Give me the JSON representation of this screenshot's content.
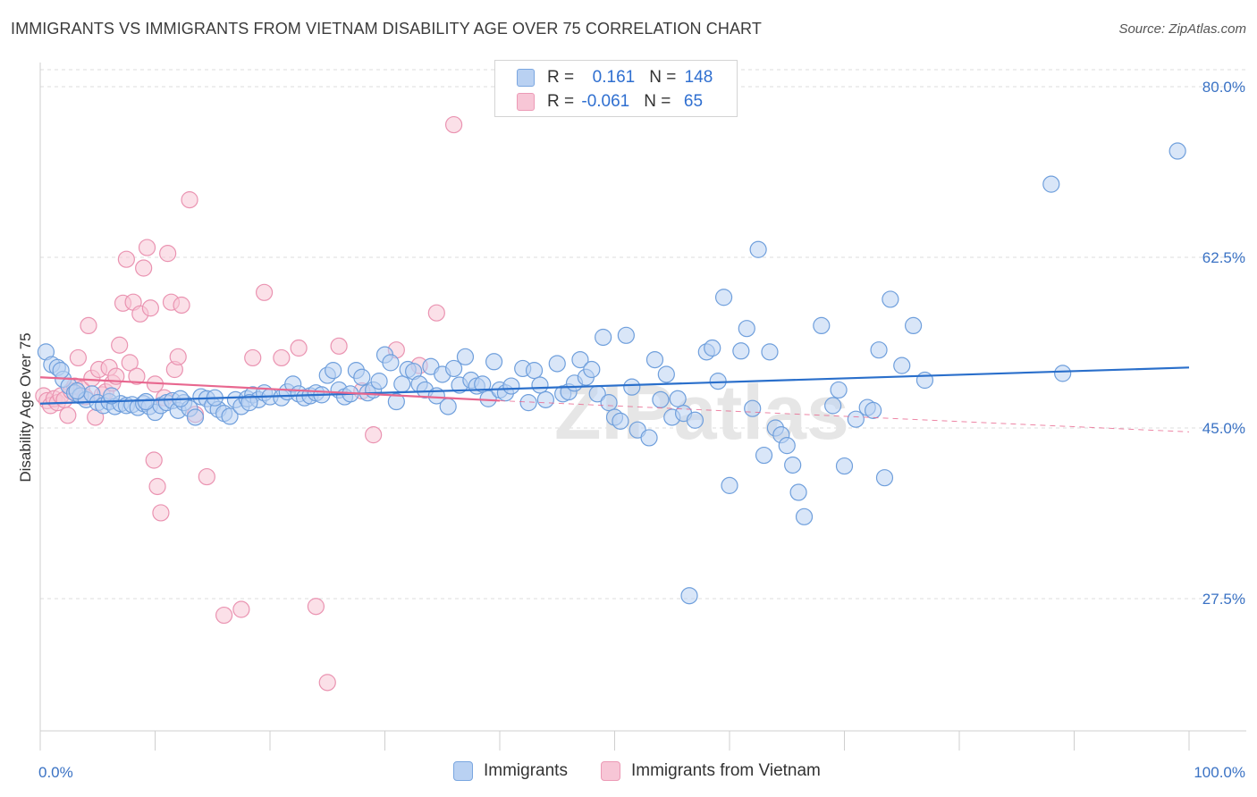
{
  "title": "IMMIGRANTS VS IMMIGRANTS FROM VIETNAM DISABILITY AGE OVER 75 CORRELATION CHART",
  "source": "Source: ZipAtlas.com",
  "watermark": "ZIPatlas",
  "legend": {
    "rows": [
      {
        "r_label": "R = ",
        "r_value": " 0.161",
        "n_label": "N = ",
        "n_value": "148"
      },
      {
        "r_label": "R = ",
        "r_value": "-0.061",
        "n_label": "N = ",
        "n_value": " 65"
      }
    ]
  },
  "bottom_legend": [
    "Immigrants",
    "Immigrants from Vietnam"
  ],
  "colors": {
    "blue_fill": "#b9d1f2",
    "blue_stroke": "#6f9fdc",
    "blue_line": "#2a6fcb",
    "pink_fill": "#f7c6d6",
    "pink_stroke": "#ea93b1",
    "pink_line": "#e8678f",
    "tick_text": "#3a72c4",
    "grid": "#dcdcdc"
  },
  "chart_data": {
    "type": "scatter",
    "ylabel": "Disability Age Over 75",
    "x_tick_labels": [
      "0.0%",
      "100.0%"
    ],
    "y_tick_labels": [
      "80.0%",
      "62.5%",
      "45.0%",
      "27.5%"
    ],
    "y_ticks": [
      80.0,
      62.5,
      45.0,
      27.5
    ],
    "xlim": [
      0,
      100
    ],
    "ylim": [
      10.5,
      83
    ],
    "grid": "horizontal dashed",
    "legend_position": "top-center",
    "series": [
      {
        "name": "Immigrants",
        "color": "#6f9fdc",
        "trend": {
          "x": [
            0,
            100
          ],
          "y": [
            47.5,
            51.2
          ]
        },
        "points": [
          [
            0.5,
            52.8
          ],
          [
            1,
            51.5
          ],
          [
            1.5,
            51.2
          ],
          [
            2,
            50
          ],
          [
            2.5,
            49.3
          ],
          [
            3,
            48.6
          ],
          [
            3.5,
            48.3
          ],
          [
            4,
            47.9
          ],
          [
            4.5,
            48.5
          ],
          [
            5,
            47.6
          ],
          [
            5.5,
            47.3
          ],
          [
            6,
            47.7
          ],
          [
            6.5,
            47.2
          ],
          [
            7,
            47.5
          ],
          [
            7.5,
            47.3
          ],
          [
            8,
            47.4
          ],
          [
            8.5,
            47.1
          ],
          [
            9,
            47.5
          ],
          [
            9.5,
            47.2
          ],
          [
            10,
            46.6
          ],
          [
            10.5,
            47.3
          ],
          [
            11,
            47.6
          ],
          [
            11.5,
            47.8
          ],
          [
            12,
            46.8
          ],
          [
            12.5,
            47.6
          ],
          [
            13,
            47.0
          ],
          [
            13.5,
            46.1
          ],
          [
            14,
            48.2
          ],
          [
            14.5,
            48.0
          ],
          [
            15,
            47.3
          ],
          [
            15.5,
            46.9
          ],
          [
            16,
            46.5
          ],
          [
            16.5,
            46.2
          ],
          [
            17,
            47.9
          ],
          [
            17.5,
            47.2
          ],
          [
            18,
            48.0
          ],
          [
            18.5,
            48.4
          ],
          [
            19,
            47.9
          ],
          [
            19.5,
            48.6
          ],
          [
            20,
            48.2
          ],
          [
            21,
            48.1
          ],
          [
            21.5,
            48.7
          ],
          [
            22,
            49.5
          ],
          [
            22.5,
            48.5
          ],
          [
            23,
            48.1
          ],
          [
            23.5,
            48.3
          ],
          [
            24,
            48.6
          ],
          [
            24.5,
            48.4
          ],
          [
            25,
            50.4
          ],
          [
            25.5,
            50.9
          ],
          [
            26,
            48.9
          ],
          [
            26.5,
            48.2
          ],
          [
            27,
            48.5
          ],
          [
            27.5,
            50.9
          ],
          [
            28,
            50.2
          ],
          [
            28.5,
            48.6
          ],
          [
            29,
            48.9
          ],
          [
            29.5,
            49.8
          ],
          [
            30,
            52.5
          ],
          [
            30.5,
            51.7
          ],
          [
            31,
            47.7
          ],
          [
            31.5,
            49.5
          ],
          [
            32,
            51.0
          ],
          [
            32.5,
            50.8
          ],
          [
            33,
            49.5
          ],
          [
            33.5,
            48.9
          ],
          [
            34,
            51.3
          ],
          [
            34.5,
            48.3
          ],
          [
            35,
            50.5
          ],
          [
            35.5,
            47.2
          ],
          [
            36,
            51.1
          ],
          [
            36.5,
            49.4
          ],
          [
            37,
            52.3
          ],
          [
            37.5,
            49.9
          ],
          [
            38,
            49.3
          ],
          [
            38.5,
            49.5
          ],
          [
            39,
            48.0
          ],
          [
            39.5,
            51.8
          ],
          [
            40,
            48.9
          ],
          [
            40.5,
            48.6
          ],
          [
            41,
            49.3
          ],
          [
            42,
            51.1
          ],
          [
            42.5,
            47.6
          ],
          [
            43,
            50.9
          ],
          [
            43.5,
            49.4
          ],
          [
            44,
            47.9
          ],
          [
            45,
            51.6
          ],
          [
            45.5,
            48.5
          ],
          [
            46,
            48.7
          ],
          [
            46.5,
            49.6
          ],
          [
            47,
            52.0
          ],
          [
            47.5,
            50.2
          ],
          [
            48,
            51.0
          ],
          [
            48.5,
            48.5
          ],
          [
            49,
            54.3
          ],
          [
            49.5,
            47.6
          ],
          [
            50,
            46.1
          ],
          [
            50.5,
            45.7
          ],
          [
            51,
            54.5
          ],
          [
            51.5,
            49.2
          ],
          [
            52,
            44.8
          ],
          [
            53,
            44.0
          ],
          [
            53.5,
            52.0
          ],
          [
            54,
            47.9
          ],
          [
            54.5,
            50.5
          ],
          [
            55,
            46.1
          ],
          [
            55.5,
            48.0
          ],
          [
            56,
            46.5
          ],
          [
            56.5,
            27.8
          ],
          [
            57,
            45.8
          ],
          [
            58,
            52.8
          ],
          [
            58.5,
            53.2
          ],
          [
            59,
            49.8
          ],
          [
            59.5,
            58.4
          ],
          [
            60,
            39.1
          ],
          [
            61,
            52.9
          ],
          [
            61.5,
            55.2
          ],
          [
            62,
            47.0
          ],
          [
            62.5,
            63.3
          ],
          [
            63,
            42.2
          ],
          [
            63.5,
            52.8
          ],
          [
            64,
            45.0
          ],
          [
            64.5,
            44.3
          ],
          [
            65,
            43.2
          ],
          [
            65.5,
            41.2
          ],
          [
            66,
            38.4
          ],
          [
            66.5,
            35.9
          ],
          [
            68,
            55.5
          ],
          [
            69,
            47.3
          ],
          [
            69.5,
            48.9
          ],
          [
            70,
            41.1
          ],
          [
            71,
            45.9
          ],
          [
            72,
            47.1
          ],
          [
            72.5,
            46.8
          ],
          [
            73,
            53.0
          ],
          [
            73.5,
            39.9
          ],
          [
            74,
            58.2
          ],
          [
            75,
            51.4
          ],
          [
            76,
            55.5
          ],
          [
            77,
            49.9
          ],
          [
            88,
            70.0
          ],
          [
            89,
            50.6
          ],
          [
            99,
            73.4
          ],
          [
            1.8,
            50.9
          ],
          [
            3.2,
            48.8
          ],
          [
            6.2,
            48.3
          ],
          [
            9.2,
            47.7
          ],
          [
            12.2,
            48.0
          ],
          [
            15.2,
            48.1
          ],
          [
            18.2,
            47.6
          ]
        ]
      },
      {
        "name": "Immigrants from Vietnam",
        "color": "#ea93b1",
        "trend": {
          "x": [
            0,
            40
          ],
          "y": [
            50.2,
            47.8
          ],
          "dashed_to": [
            100,
            44.6
          ]
        },
        "points": [
          [
            0.3,
            48.3
          ],
          [
            0.6,
            47.8
          ],
          [
            0.9,
            47.3
          ],
          [
            1.2,
            48.0
          ],
          [
            1.5,
            47.6
          ],
          [
            1.8,
            48.3
          ],
          [
            2.1,
            47.9
          ],
          [
            2.4,
            46.3
          ],
          [
            2.7,
            48.8
          ],
          [
            3,
            49.3
          ],
          [
            3.3,
            52.2
          ],
          [
            3.6,
            49.0
          ],
          [
            3.9,
            48.2
          ],
          [
            4.2,
            55.5
          ],
          [
            4.5,
            50.1
          ],
          [
            4.8,
            46.1
          ],
          [
            5.1,
            51.0
          ],
          [
            5.4,
            48.4
          ],
          [
            5.7,
            48.7
          ],
          [
            6,
            51.2
          ],
          [
            6.3,
            49.6
          ],
          [
            6.6,
            50.3
          ],
          [
            6.9,
            53.5
          ],
          [
            7.2,
            57.8
          ],
          [
            7.5,
            62.3
          ],
          [
            7.8,
            51.7
          ],
          [
            8.1,
            57.9
          ],
          [
            8.4,
            50.3
          ],
          [
            8.7,
            56.7
          ],
          [
            9,
            61.4
          ],
          [
            9.3,
            63.5
          ],
          [
            9.6,
            57.3
          ],
          [
            9.9,
            41.7
          ],
          [
            10.2,
            39.0
          ],
          [
            10.5,
            36.3
          ],
          [
            10.8,
            48.1
          ],
          [
            11.1,
            62.9
          ],
          [
            11.4,
            57.9
          ],
          [
            11.7,
            51.0
          ],
          [
            12,
            52.3
          ],
          [
            12.3,
            57.6
          ],
          [
            13,
            68.4
          ],
          [
            13.5,
            46.4
          ],
          [
            14.5,
            40.0
          ],
          [
            16,
            25.8
          ],
          [
            17.5,
            26.4
          ],
          [
            18.5,
            52.2
          ],
          [
            19.5,
            58.9
          ],
          [
            21,
            52.2
          ],
          [
            22.5,
            53.2
          ],
          [
            24,
            26.7
          ],
          [
            25,
            18.9
          ],
          [
            26,
            53.4
          ],
          [
            28,
            48.8
          ],
          [
            29,
            44.3
          ],
          [
            31,
            53.0
          ],
          [
            33,
            51.4
          ],
          [
            34.5,
            56.8
          ],
          [
            36,
            76.1
          ],
          [
            10,
            49.5
          ]
        ]
      }
    ]
  }
}
